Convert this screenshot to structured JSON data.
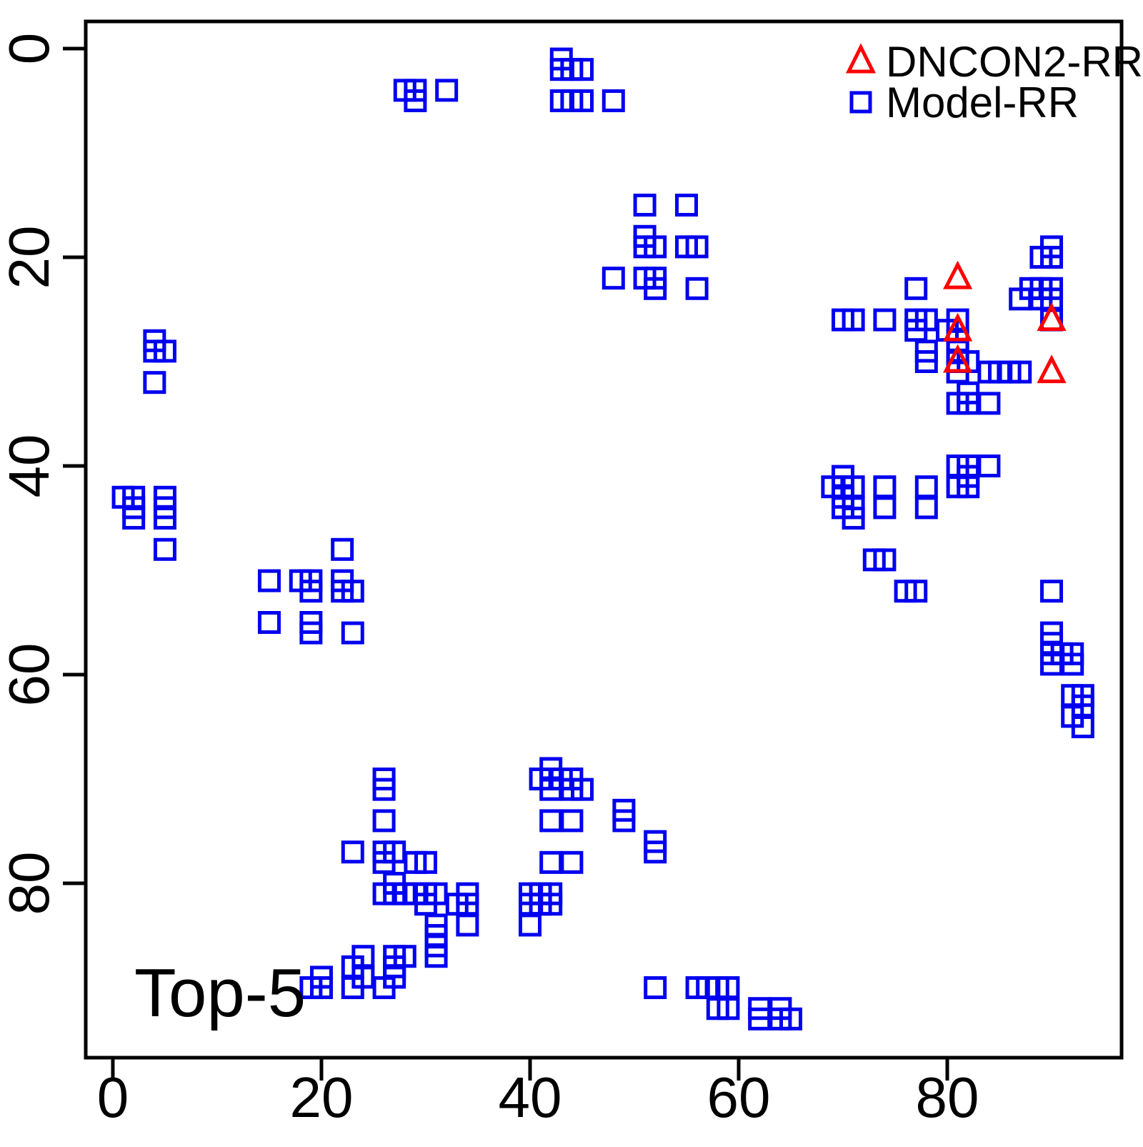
{
  "title": "Top-5",
  "colors": {
    "dncon2": "#ff0000",
    "model": "#0000f0",
    "axis": "#000000",
    "background": "#ffffff"
  },
  "legend": {
    "items": [
      {
        "label": "DNCON2-RR",
        "marker": "triangle-icon",
        "color": "#ff0000"
      },
      {
        "label": "Model-RR",
        "marker": "square-icon",
        "color": "#0000f0"
      }
    ]
  },
  "axes": {
    "x_tick_labels": [
      "0",
      "20",
      "40",
      "60",
      "80"
    ],
    "y_tick_labels": [
      "0",
      "20",
      "40",
      "60",
      "80"
    ],
    "x_ticks": [
      0,
      20,
      40,
      60,
      80
    ],
    "y_ticks": [
      0,
      20,
      40,
      60,
      80
    ]
  },
  "chart_data": {
    "type": "scatter",
    "title": "Top-5",
    "xlabel": "",
    "ylabel": "",
    "xlim": [
      -2.6,
      96.71
    ],
    "ylim": [
      -2.6,
      96.71
    ],
    "y_axis_inverted": true,
    "grid": false,
    "legend_position": "topright",
    "series": [
      {
        "name": "DNCON2-RR",
        "marker": "triangle",
        "color": "#ff0000",
        "points": [
          [
            81,
            22
          ],
          [
            81,
            27
          ],
          [
            81,
            30
          ],
          [
            90,
            26
          ],
          [
            90,
            31
          ]
        ]
      },
      {
        "name": "Model-RR",
        "marker": "square",
        "color": "#0000f0",
        "points": [
          [
            28,
            4
          ],
          [
            29,
            4
          ],
          [
            32,
            4
          ],
          [
            29,
            5
          ],
          [
            43,
            1
          ],
          [
            43,
            2
          ],
          [
            44,
            2
          ],
          [
            45,
            2
          ],
          [
            43,
            5
          ],
          [
            44,
            5
          ],
          [
            45,
            5
          ],
          [
            48,
            5
          ],
          [
            51,
            15
          ],
          [
            55,
            15
          ],
          [
            51,
            18
          ],
          [
            51,
            19
          ],
          [
            52,
            19
          ],
          [
            55,
            19
          ],
          [
            56,
            19
          ],
          [
            48,
            22
          ],
          [
            51,
            22
          ],
          [
            52,
            22
          ],
          [
            52,
            23
          ],
          [
            56,
            23
          ],
          [
            4,
            28
          ],
          [
            4,
            29
          ],
          [
            5,
            29
          ],
          [
            4,
            32
          ],
          [
            1,
            43
          ],
          [
            2,
            43
          ],
          [
            2,
            44
          ],
          [
            2,
            45
          ],
          [
            5,
            43
          ],
          [
            5,
            44
          ],
          [
            5,
            45
          ],
          [
            5,
            48
          ],
          [
            22,
            48
          ],
          [
            15,
            51
          ],
          [
            18,
            51
          ],
          [
            19,
            51
          ],
          [
            22,
            51
          ],
          [
            19,
            52
          ],
          [
            22,
            52
          ],
          [
            23,
            52
          ],
          [
            15,
            55
          ],
          [
            19,
            55
          ],
          [
            19,
            56
          ],
          [
            23,
            56
          ],
          [
            90,
            19
          ],
          [
            89,
            20
          ],
          [
            90,
            20
          ],
          [
            77,
            23
          ],
          [
            88,
            23
          ],
          [
            89,
            23
          ],
          [
            90,
            23
          ],
          [
            87,
            24
          ],
          [
            89,
            24
          ],
          [
            90,
            24
          ],
          [
            70,
            26
          ],
          [
            71,
            26
          ],
          [
            74,
            26
          ],
          [
            77,
            26
          ],
          [
            78,
            26
          ],
          [
            81,
            26
          ],
          [
            90,
            26
          ],
          [
            77,
            27
          ],
          [
            80,
            27
          ],
          [
            81,
            28
          ],
          [
            78,
            29
          ],
          [
            81,
            29
          ],
          [
            78,
            30
          ],
          [
            81,
            30
          ],
          [
            82,
            30
          ],
          [
            81,
            31
          ],
          [
            84,
            31
          ],
          [
            85,
            31
          ],
          [
            86,
            31
          ],
          [
            87,
            31
          ],
          [
            82,
            33
          ],
          [
            81,
            34
          ],
          [
            82,
            34
          ],
          [
            84,
            34
          ],
          [
            70,
            41
          ],
          [
            69,
            42
          ],
          [
            70,
            42
          ],
          [
            71,
            42
          ],
          [
            74,
            42
          ],
          [
            78,
            42
          ],
          [
            70,
            43
          ],
          [
            70,
            44
          ],
          [
            71,
            44
          ],
          [
            74,
            44
          ],
          [
            78,
            44
          ],
          [
            71,
            45
          ],
          [
            81,
            40
          ],
          [
            82,
            40
          ],
          [
            84,
            40
          ],
          [
            82,
            41
          ],
          [
            81,
            42
          ],
          [
            82,
            42
          ],
          [
            73,
            49
          ],
          [
            74,
            49
          ],
          [
            76,
            52
          ],
          [
            77,
            52
          ],
          [
            90,
            52
          ],
          [
            90,
            56
          ],
          [
            90,
            57
          ],
          [
            90,
            58
          ],
          [
            91,
            58
          ],
          [
            92,
            58
          ],
          [
            90,
            59
          ],
          [
            92,
            59
          ],
          [
            92,
            62
          ],
          [
            93,
            62
          ],
          [
            93,
            63
          ],
          [
            92,
            64
          ],
          [
            93,
            65
          ],
          [
            26,
            70
          ],
          [
            26,
            71
          ],
          [
            26,
            74
          ],
          [
            23,
            77
          ],
          [
            26,
            77
          ],
          [
            27,
            77
          ],
          [
            26,
            78
          ],
          [
            29,
            78
          ],
          [
            30,
            78
          ],
          [
            27,
            80
          ],
          [
            26,
            81
          ],
          [
            27,
            81
          ],
          [
            28,
            81
          ],
          [
            29,
            81
          ],
          [
            30,
            81
          ],
          [
            31,
            81
          ],
          [
            34,
            81
          ],
          [
            30,
            82
          ],
          [
            33,
            82
          ],
          [
            34,
            82
          ],
          [
            31,
            84
          ],
          [
            34,
            84
          ],
          [
            31,
            85
          ],
          [
            31,
            86
          ],
          [
            24,
            87
          ],
          [
            27,
            87
          ],
          [
            28,
            87
          ],
          [
            31,
            87
          ],
          [
            23,
            88
          ],
          [
            27,
            88
          ],
          [
            20,
            89
          ],
          [
            24,
            89
          ],
          [
            27,
            89
          ],
          [
            19,
            90
          ],
          [
            20,
            90
          ],
          [
            23,
            90
          ],
          [
            26,
            90
          ],
          [
            42,
            69
          ],
          [
            41,
            70
          ],
          [
            42,
            70
          ],
          [
            43,
            70
          ],
          [
            44,
            70
          ],
          [
            42,
            71
          ],
          [
            44,
            71
          ],
          [
            45,
            71
          ],
          [
            49,
            73
          ],
          [
            42,
            74
          ],
          [
            44,
            74
          ],
          [
            49,
            74
          ],
          [
            52,
            76
          ],
          [
            52,
            77
          ],
          [
            42,
            78
          ],
          [
            44,
            78
          ],
          [
            40,
            81
          ],
          [
            41,
            81
          ],
          [
            42,
            81
          ],
          [
            40,
            82
          ],
          [
            41,
            82
          ],
          [
            42,
            82
          ],
          [
            40,
            84
          ],
          [
            52,
            90
          ],
          [
            56,
            90
          ],
          [
            57,
            90
          ],
          [
            58,
            90
          ],
          [
            59,
            90
          ],
          [
            58,
            92
          ],
          [
            59,
            92
          ],
          [
            62,
            92
          ],
          [
            64,
            92
          ],
          [
            62,
            93
          ],
          [
            64,
            93
          ],
          [
            65,
            93
          ]
        ]
      }
    ]
  }
}
